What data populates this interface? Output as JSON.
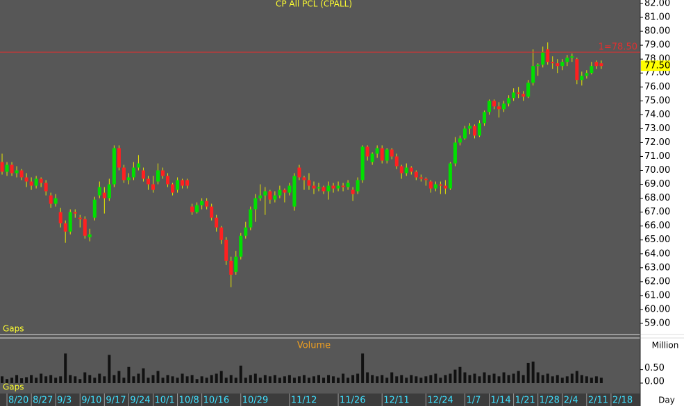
{
  "chart_data": {
    "type": "candlestick",
    "title": "CP All PCL (CPALL)",
    "x_label": "Day",
    "gaps_labels": [
      "Gaps",
      "Gaps"
    ],
    "colors": {
      "up": "#00e000",
      "down": "#ff2020",
      "wick": "#e8e800",
      "background": "#575757",
      "volume": "#111111"
    },
    "xlim": [
      -0.43,
      131
    ],
    "xticks": [
      {
        "value": 1,
        "label": "8/20"
      },
      {
        "value": 6,
        "label": "8/27"
      },
      {
        "value": 11,
        "label": "9/3"
      },
      {
        "value": 16,
        "label": "9/10"
      },
      {
        "value": 21,
        "label": "9/17"
      },
      {
        "value": 26,
        "label": "9/24"
      },
      {
        "value": 31,
        "label": "10/1"
      },
      {
        "value": 36,
        "label": "10/8"
      },
      {
        "value": 41,
        "label": "10/16"
      },
      {
        "value": 49,
        "label": "10/29"
      },
      {
        "value": 59,
        "label": "11/12"
      },
      {
        "value": 69,
        "label": "11/26"
      },
      {
        "value": 78,
        "label": "12/11"
      },
      {
        "value": 87,
        "label": "12/24"
      },
      {
        "value": 95,
        "label": "1/7"
      },
      {
        "value": 100,
        "label": "1/14"
      },
      {
        "value": 105,
        "label": "1/21"
      },
      {
        "value": 110,
        "label": "1/28"
      },
      {
        "value": 115,
        "label": "2/4"
      },
      {
        "value": 120,
        "label": "2/11"
      },
      {
        "value": 125,
        "label": "2/18"
      }
    ],
    "ylim": [
      58.2,
      82.25
    ],
    "yticks": [
      {
        "value": 82,
        "label": "82.00"
      },
      {
        "value": 81,
        "label": "81.00"
      },
      {
        "value": 80,
        "label": "80.00"
      },
      {
        "value": 79,
        "label": "79.00"
      },
      {
        "value": 78,
        "label": "78.00"
      },
      {
        "value": 77,
        "label": "77.00"
      },
      {
        "value": 76,
        "label": "76.00"
      },
      {
        "value": 75,
        "label": "75.00"
      },
      {
        "value": 74,
        "label": "74.00"
      },
      {
        "value": 73,
        "label": "73.00"
      },
      {
        "value": 72,
        "label": "72.00"
      },
      {
        "value": 71,
        "label": "71.00"
      },
      {
        "value": 70,
        "label": "70.00"
      },
      {
        "value": 69,
        "label": "69.00"
      },
      {
        "value": 68,
        "label": "68.00"
      },
      {
        "value": 67,
        "label": "67.00"
      },
      {
        "value": 66,
        "label": "66.00"
      },
      {
        "value": 65,
        "label": "65.00"
      },
      {
        "value": 64,
        "label": "64.00"
      },
      {
        "value": 63,
        "label": "63.00"
      },
      {
        "value": 62,
        "label": "62.00"
      },
      {
        "value": 61,
        "label": "61.00"
      },
      {
        "value": 60,
        "label": "60.00"
      },
      {
        "value": 59,
        "label": "59.00"
      }
    ],
    "hline": {
      "value": 78.5,
      "label": "1=78.50",
      "color": "#e03030"
    },
    "last_price": {
      "value": 77.5,
      "label": "77.50",
      "color": "#ffff00"
    },
    "ohlc": [
      [
        70.6,
        71.2,
        69.7,
        69.9
      ],
      [
        69.9,
        70.6,
        69.6,
        70.4
      ],
      [
        70.4,
        70.6,
        69.6,
        69.8
      ],
      [
        69.8,
        70.3,
        69.5,
        70.0
      ],
      [
        70.0,
        70.1,
        69.3,
        69.5
      ],
      [
        69.5,
        69.8,
        68.8,
        69.2
      ],
      [
        69.2,
        69.5,
        68.6,
        68.9
      ],
      [
        68.9,
        69.6,
        68.7,
        69.4
      ],
      [
        69.4,
        69.5,
        68.8,
        69.1
      ],
      [
        69.1,
        69.3,
        68.2,
        68.5
      ],
      [
        68.2,
        68.4,
        67.3,
        67.6
      ],
      [
        67.6,
        68.3,
        67.4,
        68.0
      ],
      [
        67.0,
        67.3,
        65.9,
        66.2
      ],
      [
        66.2,
        66.4,
        64.8,
        65.6
      ],
      [
        65.6,
        67.2,
        65.4,
        67.0
      ],
      [
        67.0,
        67.2,
        66.6,
        66.9
      ],
      [
        66.6,
        66.8,
        65.9,
        66.5
      ],
      [
        66.5,
        66.7,
        65.1,
        65.3
      ],
      [
        65.2,
        65.8,
        64.9,
        65.4
      ],
      [
        66.6,
        68.1,
        66.4,
        67.9
      ],
      [
        68.2,
        69.2,
        68.0,
        68.8
      ],
      [
        68.4,
        68.8,
        66.9,
        68.0
      ],
      [
        68.0,
        69.4,
        67.8,
        69.0
      ],
      [
        69.0,
        71.8,
        68.8,
        71.6
      ],
      [
        71.6,
        71.8,
        70.0,
        70.2
      ],
      [
        70.2,
        70.4,
        69.1,
        69.3
      ],
      [
        69.3,
        69.8,
        69.0,
        69.5
      ],
      [
        69.5,
        70.6,
        69.3,
        70.2
      ],
      [
        70.2,
        71.1,
        70.0,
        70.5
      ],
      [
        70.0,
        70.2,
        69.2,
        69.4
      ],
      [
        69.4,
        69.6,
        68.6,
        69.0
      ],
      [
        69.0,
        69.6,
        68.4,
        68.6
      ],
      [
        69.2,
        70.5,
        69.0,
        70.0
      ],
      [
        70.0,
        70.2,
        69.4,
        69.6
      ],
      [
        69.6,
        69.8,
        68.8,
        69.0
      ],
      [
        69.0,
        69.1,
        68.2,
        68.4
      ],
      [
        68.6,
        69.5,
        68.4,
        69.3
      ],
      [
        69.3,
        69.4,
        68.7,
        68.9
      ],
      [
        69.3,
        69.4,
        68.7,
        68.9
      ],
      [
        67.4,
        67.6,
        66.8,
        67.0
      ],
      [
        67.0,
        67.7,
        66.9,
        67.5
      ],
      [
        67.5,
        68.0,
        67.2,
        67.8
      ],
      [
        67.8,
        68.0,
        67.2,
        67.4
      ],
      [
        67.4,
        67.6,
        66.4,
        66.6
      ],
      [
        66.6,
        66.8,
        65.6,
        65.9
      ],
      [
        65.9,
        66.0,
        64.7,
        65.0
      ],
      [
        65.0,
        65.2,
        63.2,
        63.5
      ],
      [
        63.5,
        63.8,
        61.6,
        62.5
      ],
      [
        62.7,
        64.2,
        62.5,
        63.8
      ],
      [
        63.8,
        65.5,
        63.6,
        65.3
      ],
      [
        65.3,
        66.3,
        65.1,
        65.9
      ],
      [
        65.9,
        67.4,
        65.7,
        67.2
      ],
      [
        67.2,
        68.3,
        66.3,
        68.0
      ],
      [
        68.0,
        69.0,
        67.8,
        68.2
      ],
      [
        68.2,
        68.8,
        66.8,
        68.5
      ],
      [
        68.5,
        68.6,
        67.6,
        67.9
      ],
      [
        67.9,
        68.5,
        67.7,
        68.2
      ],
      [
        68.2,
        68.9,
        68.0,
        68.6
      ],
      [
        68.6,
        68.7,
        67.7,
        68.4
      ],
      [
        68.4,
        69.1,
        68.2,
        68.9
      ],
      [
        67.4,
        69.8,
        67.1,
        69.6
      ],
      [
        70.2,
        70.4,
        69.3,
        69.5
      ],
      [
        69.5,
        69.6,
        68.6,
        69.3
      ],
      [
        69.3,
        69.8,
        68.6,
        68.9
      ],
      [
        68.9,
        69.2,
        68.3,
        68.7
      ],
      [
        68.7,
        69.1,
        68.5,
        68.8
      ],
      [
        68.8,
        68.9,
        68.3,
        68.5
      ],
      [
        68.5,
        69.2,
        67.9,
        68.9
      ],
      [
        68.9,
        69.1,
        68.4,
        68.7
      ],
      [
        68.7,
        69.2,
        68.5,
        68.9
      ],
      [
        68.9,
        69.1,
        68.5,
        68.8
      ],
      [
        68.8,
        69.3,
        68.6,
        69.1
      ],
      [
        68.6,
        68.8,
        67.8,
        68.3
      ],
      [
        68.5,
        69.5,
        68.3,
        69.3
      ],
      [
        69.3,
        71.8,
        69.1,
        71.7
      ],
      [
        71.7,
        71.8,
        70.7,
        71.0
      ],
      [
        70.6,
        71.3,
        70.4,
        71.2
      ],
      [
        71.2,
        71.8,
        70.9,
        71.6
      ],
      [
        71.6,
        71.8,
        70.5,
        70.7
      ],
      [
        70.7,
        71.6,
        70.5,
        71.5
      ],
      [
        71.5,
        71.6,
        70.8,
        71.0
      ],
      [
        71.0,
        71.2,
        70.1,
        70.3
      ],
      [
        70.3,
        70.4,
        69.4,
        69.8
      ],
      [
        69.8,
        70.5,
        69.6,
        70.2
      ],
      [
        70.2,
        70.3,
        69.7,
        69.9
      ],
      [
        69.9,
        70.0,
        69.3,
        69.5
      ],
      [
        69.5,
        69.7,
        69.2,
        69.4
      ],
      [
        69.4,
        69.5,
        68.9,
        69.3
      ],
      [
        69.2,
        69.3,
        68.4,
        68.7
      ],
      [
        68.7,
        69.2,
        68.5,
        69.0
      ],
      [
        69.0,
        69.2,
        68.3,
        68.9
      ],
      [
        68.9,
        69.3,
        68.3,
        68.7
      ],
      [
        68.7,
        70.6,
        68.6,
        70.5
      ],
      [
        70.5,
        72.4,
        70.3,
        72.0
      ],
      [
        72.0,
        72.5,
        71.8,
        72.3
      ],
      [
        72.3,
        73.2,
        72.2,
        73.0
      ],
      [
        73.0,
        73.4,
        72.6,
        73.2
      ],
      [
        73.2,
        73.3,
        72.3,
        72.5
      ],
      [
        72.5,
        73.6,
        72.4,
        73.4
      ],
      [
        73.4,
        74.3,
        73.2,
        74.2
      ],
      [
        74.2,
        75.1,
        74.0,
        75.0
      ],
      [
        75.0,
        75.1,
        74.4,
        74.6
      ],
      [
        74.6,
        74.9,
        73.8,
        74.4
      ],
      [
        74.4,
        75.0,
        74.2,
        74.8
      ],
      [
        74.8,
        75.4,
        74.6,
        75.2
      ],
      [
        75.2,
        75.9,
        75.0,
        75.6
      ],
      [
        75.6,
        76.0,
        75.2,
        75.5
      ],
      [
        75.5,
        75.7,
        75.0,
        75.3
      ],
      [
        75.3,
        76.5,
        75.2,
        76.3
      ],
      [
        76.3,
        78.7,
        76.1,
        77.5
      ],
      [
        77.5,
        77.7,
        76.8,
        77.6
      ],
      [
        77.6,
        78.9,
        77.4,
        78.5
      ],
      [
        78.7,
        79.2,
        77.6,
        77.8
      ],
      [
        77.8,
        78.2,
        77.3,
        77.7
      ],
      [
        77.7,
        78.0,
        77.0,
        77.5
      ],
      [
        77.5,
        78.0,
        77.2,
        77.8
      ],
      [
        77.8,
        78.3,
        77.5,
        78.1
      ],
      [
        78.1,
        78.4,
        77.8,
        78.2
      ],
      [
        78.0,
        78.1,
        76.2,
        76.5
      ],
      [
        76.5,
        77.1,
        76.1,
        76.8
      ],
      [
        76.8,
        77.2,
        76.6,
        77.0
      ],
      [
        77.0,
        77.8,
        76.9,
        77.5
      ],
      [
        77.8,
        77.9,
        77.3,
        77.5
      ],
      [
        77.7,
        77.9,
        77.3,
        77.5
      ]
    ],
    "volume": {
      "title": "Volume",
      "unit_label": "Million",
      "ylim": [
        0,
        1.6
      ],
      "yticks": [
        {
          "value": 0.5,
          "label": "0.50"
        },
        {
          "value": 0,
          "label": "0.00"
        }
      ],
      "values": [
        0.25,
        0.15,
        0.2,
        0.3,
        0.18,
        0.22,
        0.3,
        0.2,
        0.35,
        0.25,
        0.3,
        0.2,
        0.25,
        1.1,
        0.3,
        0.25,
        0.15,
        0.4,
        0.3,
        0.2,
        0.35,
        0.25,
        1.05,
        0.3,
        0.45,
        0.2,
        0.6,
        0.25,
        0.35,
        0.55,
        0.2,
        0.3,
        0.45,
        0.2,
        0.3,
        0.25,
        0.2,
        0.35,
        0.25,
        0.3,
        0.15,
        0.25,
        0.2,
        0.3,
        0.35,
        0.45,
        0.2,
        0.3,
        0.2,
        0.65,
        0.2,
        0.3,
        0.35,
        0.2,
        0.3,
        0.25,
        0.3,
        0.2,
        0.25,
        0.3,
        0.2,
        0.25,
        0.3,
        0.2,
        0.25,
        0.3,
        0.2,
        0.3,
        0.25,
        0.2,
        0.35,
        0.2,
        0.3,
        0.35,
        1.1,
        0.4,
        0.3,
        0.25,
        0.3,
        0.2,
        0.4,
        0.25,
        0.3,
        0.2,
        0.3,
        0.25,
        0.2,
        0.25,
        0.3,
        0.35,
        0.2,
        0.3,
        0.35,
        0.5,
        0.6,
        0.4,
        0.3,
        0.35,
        0.25,
        0.4,
        0.3,
        0.35,
        0.25,
        0.4,
        0.3,
        0.35,
        0.45,
        0.3,
        0.75,
        0.8,
        0.4,
        0.3,
        0.35,
        0.25,
        0.3,
        0.2,
        0.25,
        0.35,
        0.45,
        0.3,
        0.25,
        0.2,
        0.25,
        0.2
      ]
    }
  }
}
